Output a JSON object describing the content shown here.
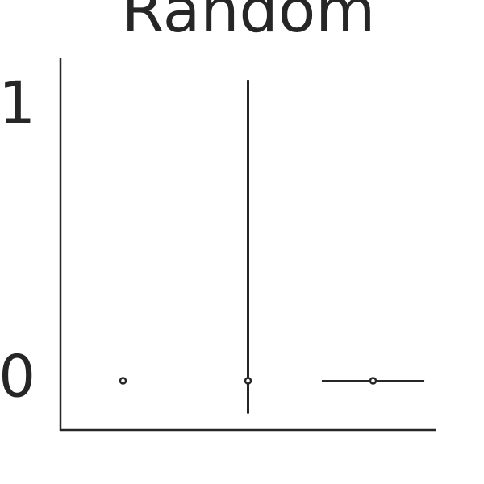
{
  "chart_data": {
    "type": "violin",
    "title": "Random",
    "categories": [
      null,
      null,
      null
    ],
    "median": [
      0,
      0,
      0
    ],
    "min": [
      0,
      -0.12,
      0
    ],
    "max": [
      0,
      1.1,
      0
    ],
    "density_width": [
      0,
      0,
      0.82
    ],
    "color": "#262626",
    "ylim": [
      -0.18,
      1.18
    ],
    "yticks": [
      0,
      1
    ],
    "grid": false
  }
}
